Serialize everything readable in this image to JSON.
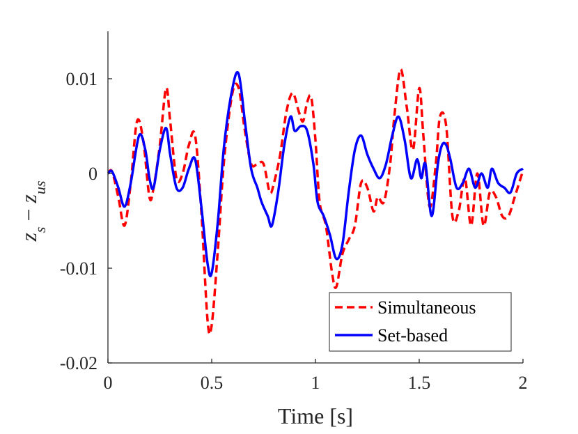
{
  "chart_data": {
    "type": "line",
    "title": "",
    "xlabel": "Time [s]",
    "ylabel_main": "z",
    "ylabel_sub1": "s",
    "ylabel_minus": " − ",
    "ylabel_main2": "z",
    "ylabel_sub2": "us",
    "xlim": [
      0,
      2
    ],
    "ylim": [
      -0.02,
      0.015
    ],
    "xticks": [
      0,
      0.5,
      1,
      1.5,
      2
    ],
    "xtick_labels": [
      "0",
      "0.5",
      "1",
      "1.5",
      "2"
    ],
    "yticks": [
      -0.02,
      -0.01,
      0,
      0.01
    ],
    "ytick_labels": [
      "-0.02",
      "-0.01",
      "0",
      "0.01"
    ],
    "grid": false,
    "legend_position": "bottom-right",
    "series": [
      {
        "name": "Simultaneous",
        "color": "#ff0000",
        "style": "dashed",
        "x": [
          0,
          0.02,
          0.05,
          0.08,
          0.11,
          0.14,
          0.17,
          0.2,
          0.22,
          0.25,
          0.28,
          0.3,
          0.33,
          0.36,
          0.39,
          0.42,
          0.45,
          0.48,
          0.5,
          0.53,
          0.56,
          0.6,
          0.63,
          0.66,
          0.69,
          0.72,
          0.75,
          0.78,
          0.8,
          0.83,
          0.86,
          0.89,
          0.92,
          0.94,
          0.96,
          0.98,
          1.0,
          1.02,
          1.05,
          1.08,
          1.1,
          1.13,
          1.16,
          1.19,
          1.22,
          1.25,
          1.28,
          1.3,
          1.33,
          1.36,
          1.38,
          1.41,
          1.44,
          1.47,
          1.5,
          1.52,
          1.55,
          1.58,
          1.6,
          1.63,
          1.66,
          1.69,
          1.72,
          1.75,
          1.78,
          1.81,
          1.84,
          1.87,
          1.9,
          1.93,
          1.96,
          2.0
        ],
        "y": [
          0,
          0.0002,
          -0.0025,
          -0.0055,
          -0.001,
          0.0055,
          0.0035,
          -0.0025,
          -0.0015,
          0.003,
          0.009,
          0.0055,
          -0.0005,
          0.0,
          0.003,
          0.004,
          -0.004,
          -0.0155,
          -0.016,
          -0.008,
          0.0015,
          0.0085,
          0.009,
          0.0045,
          0.001,
          0.001,
          0.001,
          -0.002,
          -0.001,
          0.002,
          0.0065,
          0.0085,
          0.0065,
          0.0055,
          0.0075,
          0.008,
          0.0035,
          -0.003,
          -0.0055,
          -0.0105,
          -0.012,
          -0.0085,
          -0.007,
          -0.0055,
          -0.001,
          -0.0015,
          -0.004,
          -0.0025,
          -0.003,
          0.001,
          0.006,
          0.011,
          0.007,
          0.0025,
          0.009,
          0.004,
          -0.0035,
          0.001,
          0.006,
          0.005,
          -0.0045,
          -0.004,
          -0.0005,
          -0.0055,
          0.0,
          -0.0055,
          -0.002,
          -0.0025,
          -0.0045,
          -0.0045,
          -0.0025,
          0.0003
        ]
      },
      {
        "name": "Set-based",
        "color": "#0000ff",
        "style": "solid",
        "x": [
          0,
          0.02,
          0.05,
          0.08,
          0.11,
          0.15,
          0.18,
          0.2,
          0.22,
          0.25,
          0.28,
          0.3,
          0.33,
          0.36,
          0.39,
          0.42,
          0.45,
          0.48,
          0.5,
          0.53,
          0.56,
          0.6,
          0.63,
          0.66,
          0.69,
          0.72,
          0.74,
          0.77,
          0.79,
          0.82,
          0.85,
          0.88,
          0.9,
          0.93,
          0.96,
          0.99,
          1.01,
          1.04,
          1.07,
          1.1,
          1.13,
          1.16,
          1.19,
          1.22,
          1.25,
          1.28,
          1.31,
          1.34,
          1.37,
          1.4,
          1.43,
          1.46,
          1.49,
          1.51,
          1.53,
          1.56,
          1.59,
          1.61,
          1.63,
          1.65,
          1.68,
          1.71,
          1.74,
          1.77,
          1.8,
          1.83,
          1.85,
          1.88,
          1.91,
          1.94,
          1.97,
          2.0
        ],
        "y": [
          0,
          0.0002,
          -0.0015,
          -0.0035,
          -0.001,
          0.004,
          0.0025,
          -0.0005,
          -0.0015,
          0.0025,
          0.0048,
          0.002,
          -0.0015,
          -0.0015,
          0.0005,
          0.0015,
          -0.0035,
          -0.0095,
          -0.0105,
          -0.005,
          0.003,
          0.009,
          0.0105,
          0.0055,
          0.0005,
          -0.0015,
          -0.003,
          -0.0045,
          -0.0055,
          -0.002,
          0.003,
          0.006,
          0.0045,
          0.005,
          0.0045,
          0.001,
          -0.003,
          -0.0045,
          -0.0065,
          -0.009,
          -0.0075,
          -0.002,
          0.0025,
          0.004,
          0.002,
          0.0005,
          -0.0005,
          0.001,
          0.004,
          0.006,
          0.0035,
          -0.0005,
          0.0015,
          -0.0005,
          0.001,
          -0.0045,
          0.001,
          0.003,
          0.003,
          0.0015,
          -0.0015,
          -0.001,
          0.0005,
          -0.0015,
          0.0,
          -0.0015,
          0.0005,
          -0.001,
          -0.0015,
          -0.002,
          0.0,
          0.0005
        ]
      }
    ]
  }
}
